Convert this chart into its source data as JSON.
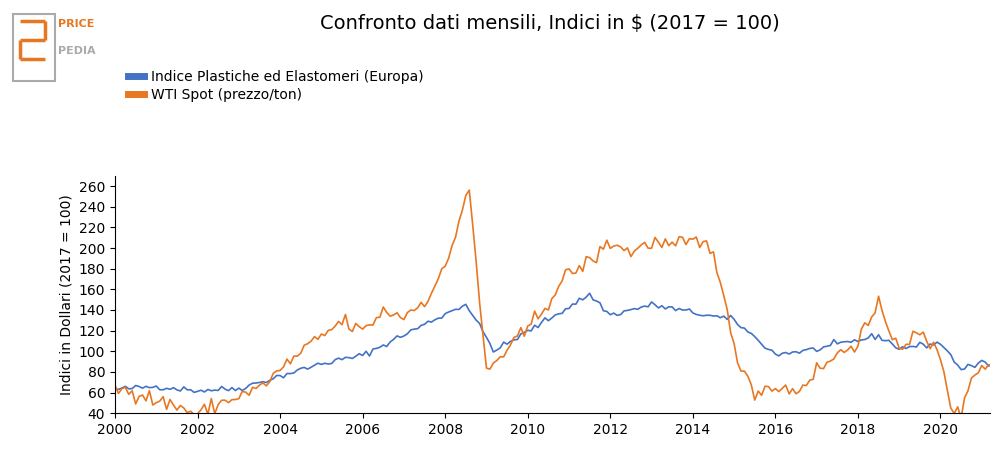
{
  "title": "Confronto dati mensili, Indici in $ (2017 = 100)",
  "ylabel": "Indici in Dollari (2017 = 100)",
  "color_blue": "#4472C4",
  "color_orange": "#E87722",
  "legend_blue": "Indice Plastiche ed Elastomeri (Europa)",
  "legend_orange": "WTI Spot (prezzo/ton)",
  "ylim": [
    40,
    270
  ],
  "yticks": [
    40,
    60,
    80,
    100,
    120,
    140,
    160,
    180,
    200,
    220,
    240,
    260
  ],
  "xlim_start": 2000.0,
  "xlim_end": 2021.2,
  "xticks": [
    2000,
    2002,
    2004,
    2006,
    2008,
    2010,
    2012,
    2014,
    2016,
    2018,
    2020
  ],
  "background_color": "#ffffff"
}
